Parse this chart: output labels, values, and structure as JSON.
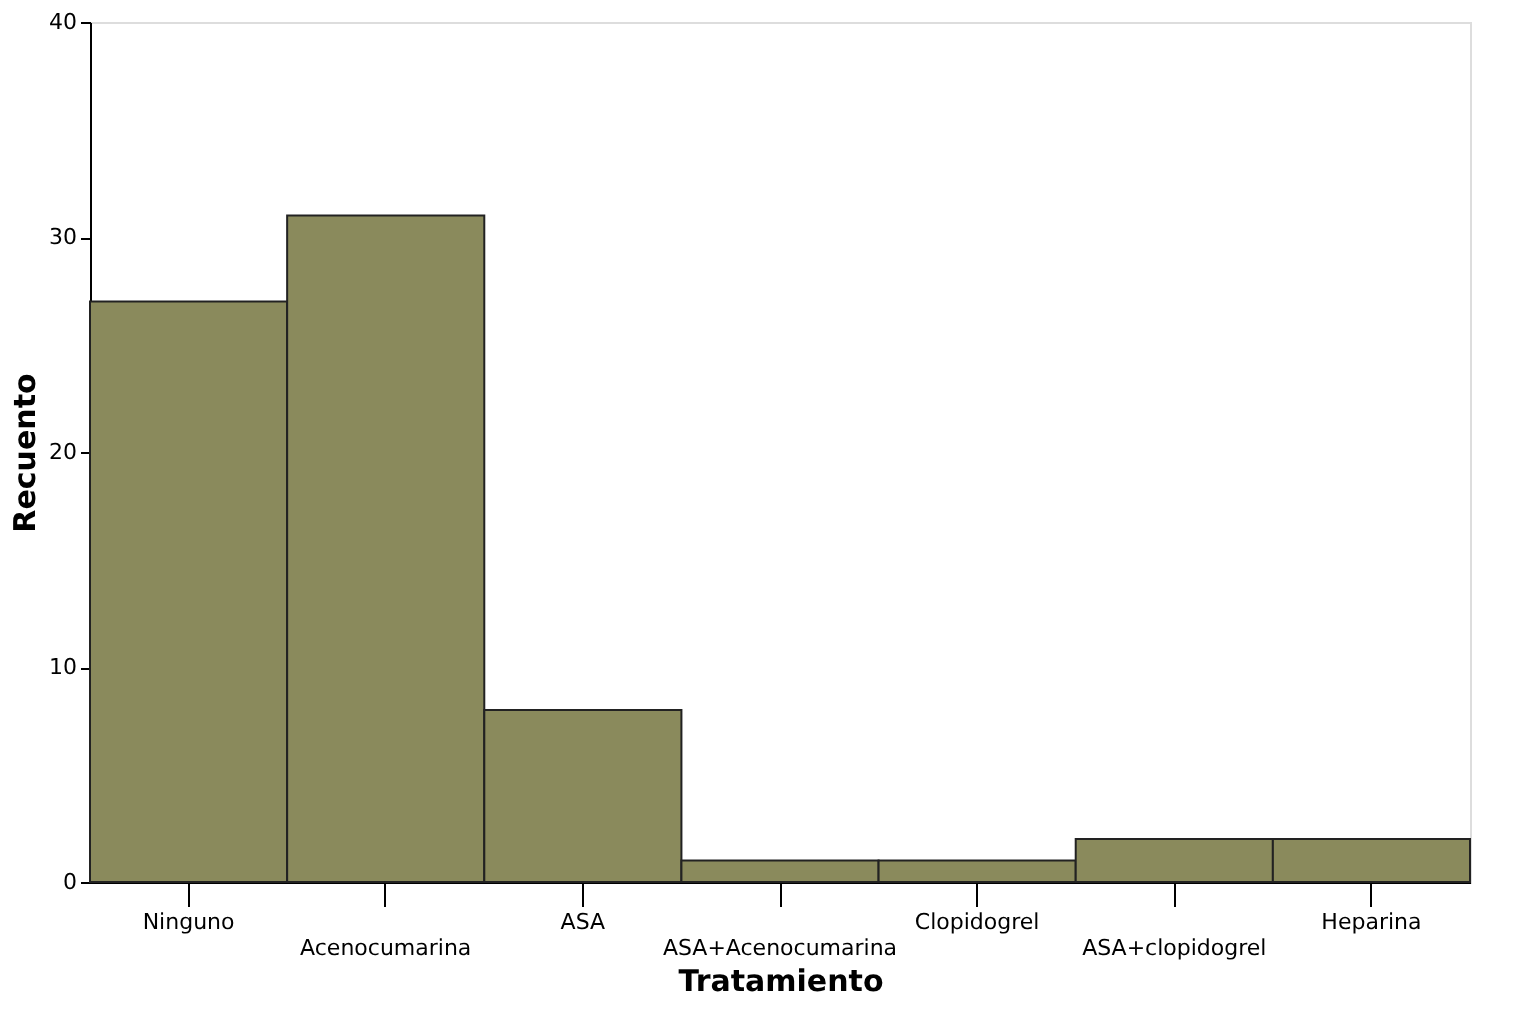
{
  "chart_data": {
    "type": "bar",
    "xlabel": "Tratamiento",
    "ylabel": "Recuento",
    "categories": [
      "Ninguno",
      "Acenocumarina",
      "ASA",
      "ASA+Acenocumarina",
      "Clopidogrel",
      "ASA+clopidogrel",
      "Heparina"
    ],
    "values": [
      27,
      31,
      8,
      1,
      1,
      2,
      2
    ],
    "color": "#8a8a5c",
    "ylim": [
      0,
      40
    ],
    "yticks": [
      0,
      10,
      20,
      30,
      40
    ],
    "grid": false
  }
}
